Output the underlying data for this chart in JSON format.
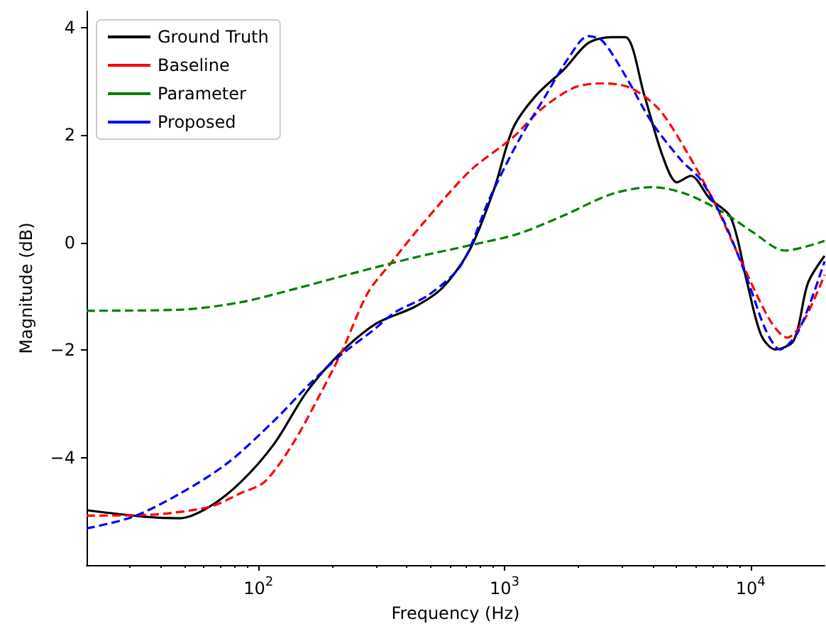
{
  "chart_data": {
    "type": "line",
    "xlabel": "Frequency (Hz)",
    "ylabel": "Magnitude (dB)",
    "log": "x",
    "xlim": [
      20,
      20000
    ],
    "xticks": [
      {
        "value": 100,
        "label": "10$^{2}$"
      },
      {
        "value": 1000,
        "label": "10$^{3}$"
      },
      {
        "value": 10000,
        "label": "10$^{4}$"
      }
    ],
    "ylim": [
      -6,
      4.3
    ],
    "yticks": [
      {
        "value": -4,
        "label": "−4"
      },
      {
        "value": -2,
        "label": "−2"
      },
      {
        "value": 0,
        "label": "0"
      },
      {
        "value": 2,
        "label": "2"
      },
      {
        "value": 4,
        "label": "4"
      }
    ],
    "grid": false,
    "legend": "top left",
    "marker": "none",
    "series": [
      {
        "name": "Ground Truth",
        "color": "#000000",
        "line_style": "solid",
        "x": [
          20,
          34,
          48,
          63,
          85,
          116,
          157,
          218,
          303,
          430,
          560,
          725,
          908,
          1084,
          1346,
          1754,
          2188,
          2720,
          3100,
          3700,
          4400,
          5020,
          5720,
          6820,
          8310,
          9700,
          11060,
          12600,
          15000,
          17100,
          20000
        ],
        "values": [
          -4.98,
          -5.1,
          -5.13,
          -4.92,
          -4.45,
          -3.74,
          -2.78,
          -2.03,
          -1.5,
          -1.2,
          -0.84,
          -0.12,
          1.0,
          2.13,
          2.74,
          3.23,
          3.71,
          3.82,
          3.82,
          2.74,
          1.6,
          1.12,
          1.24,
          0.82,
          0.47,
          -0.76,
          -1.73,
          -1.99,
          -1.82,
          -0.76,
          -0.25
        ]
      },
      {
        "name": "Baseline",
        "color": "#ff0000",
        "line_style": "dashed",
        "x": [
          20,
          34,
          63,
          85,
          106,
          138,
          180,
          218,
          278,
          347,
          471,
          727,
          1084,
          1410,
          1915,
          2500,
          3240,
          4240,
          5500,
          7150,
          9290,
          12080,
          14100,
          16400,
          20000
        ],
        "values": [
          -5.08,
          -5.07,
          -4.92,
          -4.66,
          -4.45,
          -3.74,
          -2.78,
          -2.03,
          -0.94,
          -0.37,
          0.38,
          1.34,
          1.96,
          2.48,
          2.88,
          2.96,
          2.88,
          2.48,
          1.69,
          0.73,
          -0.41,
          -1.47,
          -1.77,
          -1.47,
          -0.6
        ]
      },
      {
        "name": "Parameter",
        "color": "#008000",
        "line_style": "dashed",
        "x": [
          20,
          48,
          85,
          144,
          234,
          430,
          727,
          1133,
          1754,
          2720,
          3990,
          5500,
          7820,
          10160,
          13800,
          20000
        ],
        "values": [
          -1.27,
          -1.25,
          -1.11,
          -0.85,
          -0.59,
          -0.28,
          -0.05,
          0.16,
          0.51,
          0.9,
          1.03,
          0.9,
          0.55,
          0.2,
          -0.15,
          0.03
        ]
      },
      {
        "name": "Proposed",
        "color": "#0000ff",
        "line_style": "dashed",
        "x": [
          20,
          31,
          48,
          75,
          116,
          164,
          218,
          291,
          361,
          490,
          668,
          870,
          1133,
          1473,
          1830,
          2188,
          2500,
          3100,
          3990,
          5250,
          6270,
          7820,
          9700,
          11560,
          13200,
          15700,
          20000
        ],
        "values": [
          -5.32,
          -5.1,
          -4.67,
          -4.1,
          -3.31,
          -2.6,
          -2.08,
          -1.64,
          -1.29,
          -0.98,
          -0.41,
          0.82,
          1.87,
          2.74,
          3.45,
          3.84,
          3.75,
          3.1,
          2.22,
          1.52,
          1.17,
          0.38,
          -0.68,
          -1.64,
          -1.99,
          -1.64,
          -0.35
        ]
      }
    ]
  }
}
